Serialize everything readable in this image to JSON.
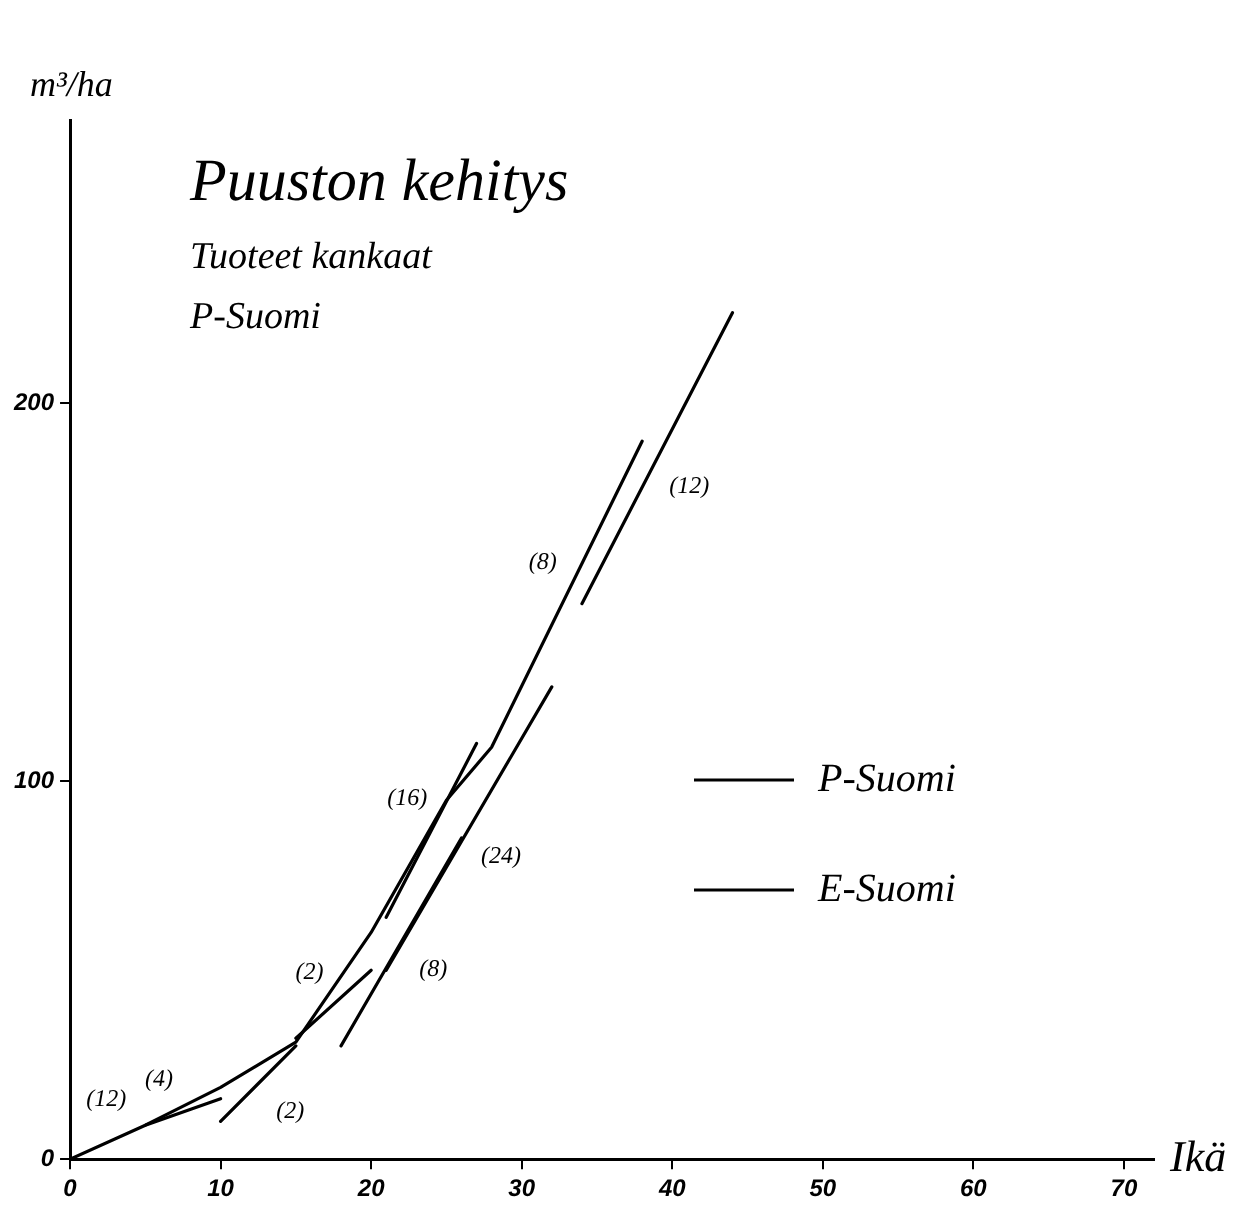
{
  "chart_data": {
    "type": "line",
    "title": "Puuston kehitys",
    "subtitle": "Tuoteet kankaat",
    "ylabel": "m³/ha",
    "xlabel": "Ikä",
    "annotations": [
      "P-Suomi",
      {
        "text": "(12)",
        "x": 4,
        "y": 7.2
      },
      {
        "text": "(4)",
        "x": 7.5,
        "y": 12.5
      },
      {
        "text": "(2)",
        "x": 12.5,
        "y": 20
      },
      {
        "text": "(2)",
        "x": 17.5,
        "y": 41
      },
      {
        "text": "(8)",
        "x": 22,
        "y": 57.5
      },
      {
        "text": "(16)",
        "x": 24,
        "y": 87
      },
      {
        "text": "(24)",
        "x": 26.5,
        "y": 87.5
      },
      {
        "text": "(8)",
        "x": 33,
        "y": 149.5
      },
      {
        "text": "(12)",
        "x": 39,
        "y": 185.5
      }
    ],
    "xlim": [
      0,
      72
    ],
    "xticks": [
      0,
      10,
      20,
      30,
      40,
      50,
      60,
      70
    ],
    "ylim": [
      0,
      275
    ],
    "yticks": [
      0,
      100,
      200
    ],
    "grid": false,
    "legend": "right",
    "marker": "none",
    "line_style": "solid",
    "series": [
      {
        "name": "P-Suomi",
        "color": "#000000",
        "x": [
          0,
          5,
          10,
          15,
          20,
          25,
          28,
          38
        ],
        "values": [
          0,
          9,
          19,
          31,
          60,
          95,
          109,
          190
        ]
      },
      {
        "name": "E-Suomi",
        "color": "#000000",
        "x": [
          5,
          10,
          null,
          10,
          15,
          null,
          15,
          20,
          null,
          18,
          26,
          null,
          21,
          27,
          null,
          21,
          32,
          null,
          34,
          44
        ],
        "values": [
          9,
          16,
          null,
          10,
          30,
          null,
          32,
          50,
          null,
          30,
          85,
          null,
          64,
          110,
          null,
          50,
          125,
          null,
          147,
          224
        ]
      }
    ]
  }
}
